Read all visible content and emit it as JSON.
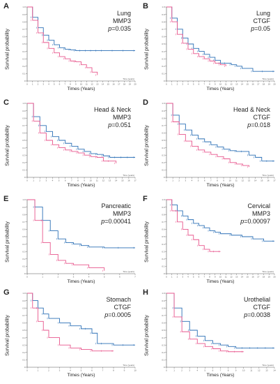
{
  "colors": {
    "mmp_high": "#2a6fb5",
    "mmp_low": "#e8558c",
    "axis": "#555555"
  },
  "common": {
    "ylabel": "Survival probability",
    "xlabel": "Times (Years)",
    "p_prefix": "p",
    "time_tag": "Time (years)"
  },
  "chart_data": [
    {
      "type": "line",
      "panel": "A",
      "cancer": "Lung",
      "gene": "MMP3",
      "p_value": "=0.035",
      "xlim": [
        0,
        20
      ],
      "ylim": [
        0,
        1
      ],
      "x_ticks": [
        "0",
        "1",
        "2",
        "3",
        "4",
        "5",
        "6",
        "7",
        "8",
        "9",
        "10",
        "11",
        "12",
        "13",
        "14",
        "15",
        "16",
        "17",
        "18",
        "19",
        "20"
      ],
      "y_ticks": [
        "0",
        "0.1",
        "0.2",
        "0.3",
        "0.4",
        "0.5",
        "0.6",
        "0.7",
        "0.8",
        "0.9",
        "1.0"
      ],
      "series": [
        {
          "x": [
            0,
            1,
            2,
            3,
            4,
            5,
            6,
            7,
            8,
            9,
            10,
            11,
            12,
            13,
            14,
            16,
            18,
            20
          ],
          "y": [
            1,
            0.86,
            0.72,
            0.62,
            0.55,
            0.49,
            0.45,
            0.43,
            0.42,
            0.41,
            0.41,
            0.41,
            0.41,
            0.41,
            0.41,
            0.41,
            0.41,
            0.41
          ]
        },
        {
          "x": [
            0,
            1,
            2,
            3,
            4,
            5,
            6,
            7,
            8,
            9,
            10,
            11,
            12,
            13
          ],
          "y": [
            1,
            0.82,
            0.65,
            0.52,
            0.44,
            0.38,
            0.33,
            0.3,
            0.27,
            0.26,
            0.22,
            0.18,
            0.12,
            0.08
          ]
        }
      ]
    },
    {
      "type": "line",
      "panel": "B",
      "cancer": "Lung",
      "gene": "CTGF",
      "p_value": "=0.05",
      "xlim": [
        0,
        20
      ],
      "ylim": [
        0,
        1
      ],
      "x_ticks": [
        "0",
        "1",
        "2",
        "3",
        "4",
        "5",
        "6",
        "7",
        "8",
        "9",
        "10",
        "11",
        "12",
        "13",
        "14",
        "15",
        "16",
        "17",
        "18",
        "19",
        "20"
      ],
      "y_ticks": [
        "0",
        "0.1",
        "0.2",
        "0.3",
        "0.4",
        "0.5",
        "0.6",
        "0.7",
        "0.8",
        "0.9",
        "1.0"
      ],
      "series": [
        {
          "x": [
            0,
            1,
            2,
            3,
            4,
            5,
            6,
            7,
            8,
            9,
            10,
            11,
            12,
            13,
            14,
            16,
            18,
            20
          ],
          "y": [
            1,
            0.85,
            0.7,
            0.58,
            0.5,
            0.44,
            0.4,
            0.36,
            0.32,
            0.28,
            0.24,
            0.24,
            0.22,
            0.2,
            0.17,
            0.13,
            0.13,
            0.13
          ]
        },
        {
          "x": [
            0,
            1,
            2,
            3,
            4,
            5,
            6,
            7,
            8,
            9,
            10,
            11
          ],
          "y": [
            1,
            0.8,
            0.63,
            0.51,
            0.43,
            0.37,
            0.33,
            0.3,
            0.27,
            0.24,
            0.22,
            0.2
          ]
        }
      ]
    },
    {
      "type": "line",
      "panel": "C",
      "cancer": "Head & Neck",
      "gene": "MMP3",
      "p_value": "=0.051",
      "xlim": [
        0,
        17
      ],
      "ylim": [
        0,
        1
      ],
      "x_ticks": [
        "0",
        "1",
        "2",
        "3",
        "4",
        "5",
        "6",
        "7",
        "8",
        "9",
        "10",
        "11",
        "12",
        "13",
        "14",
        "15",
        "16",
        "17"
      ],
      "y_ticks": [
        "0",
        "0.1",
        "0.2",
        "0.3",
        "0.4",
        "0.5",
        "0.6",
        "0.7",
        "0.8",
        "0.9",
        "1.0"
      ],
      "series": [
        {
          "x": [
            0,
            1,
            2,
            3,
            4,
            5,
            6,
            7,
            8,
            9,
            10,
            11,
            12,
            13,
            14,
            15,
            16,
            17
          ],
          "y": [
            1,
            0.82,
            0.7,
            0.62,
            0.55,
            0.5,
            0.46,
            0.42,
            0.38,
            0.35,
            0.32,
            0.31,
            0.29,
            0.27,
            0.27,
            0.27,
            0.27,
            0.27
          ]
        },
        {
          "x": [
            0,
            1,
            2,
            3,
            4,
            5,
            6,
            7,
            8,
            9,
            10,
            11,
            12,
            13,
            14
          ],
          "y": [
            1,
            0.76,
            0.6,
            0.5,
            0.44,
            0.4,
            0.37,
            0.35,
            0.33,
            0.3,
            0.28,
            0.27,
            0.22,
            0.22,
            0.19
          ]
        }
      ]
    },
    {
      "type": "line",
      "panel": "D",
      "cancer": "Head & Neck",
      "gene": "CTGF",
      "p_value": "=0.018",
      "xlim": [
        0,
        17
      ],
      "ylim": [
        0,
        1
      ],
      "x_ticks": [
        "0",
        "1",
        "2",
        "3",
        "4",
        "5",
        "6",
        "7",
        "8",
        "9",
        "10",
        "11",
        "12",
        "13",
        "14",
        "15",
        "16",
        "17"
      ],
      "y_ticks": [
        "0",
        "0.1",
        "0.2",
        "0.3",
        "0.4",
        "0.5",
        "0.6",
        "0.7",
        "0.8",
        "0.9",
        "1.0"
      ],
      "series": [
        {
          "x": [
            0,
            1,
            2,
            3,
            4,
            5,
            6,
            7,
            8,
            9,
            10,
            11,
            12,
            13,
            14,
            15,
            16,
            17
          ],
          "y": [
            1,
            0.84,
            0.72,
            0.64,
            0.57,
            0.52,
            0.48,
            0.44,
            0.41,
            0.38,
            0.36,
            0.35,
            0.35,
            0.3,
            0.27,
            0.22,
            0.22,
            0.22
          ]
        },
        {
          "x": [
            0,
            1,
            2,
            3,
            4,
            5,
            6,
            7,
            8,
            9,
            10,
            11,
            12,
            13
          ],
          "y": [
            1,
            0.75,
            0.58,
            0.49,
            0.42,
            0.37,
            0.34,
            0.31,
            0.28,
            0.25,
            0.2,
            0.18,
            0.16,
            0.14
          ]
        }
      ]
    },
    {
      "type": "line",
      "panel": "E",
      "cancer": "Pancreatic",
      "gene": "MMP3",
      "p_value": "=0.00041",
      "xlim": [
        0,
        7
      ],
      "ylim": [
        0,
        1
      ],
      "x_ticks": [
        "0",
        "1",
        "2",
        "3",
        "4",
        "5",
        "6",
        "7"
      ],
      "y_ticks": [
        "0",
        "0.1",
        "0.2",
        "0.3",
        "0.4",
        "0.5",
        "0.6",
        "0.7",
        "0.8",
        "0.9",
        "1.0"
      ],
      "series": [
        {
          "x": [
            0,
            0.5,
            1,
            1.5,
            2,
            2.5,
            3,
            3.5,
            4,
            5,
            6,
            7
          ],
          "y": [
            1,
            0.9,
            0.72,
            0.58,
            0.47,
            0.42,
            0.4,
            0.38,
            0.36,
            0.35,
            0.35,
            0.35
          ]
        },
        {
          "x": [
            0,
            0.5,
            1,
            1.5,
            2,
            2.5,
            3,
            4,
            5
          ],
          "y": [
            1,
            0.72,
            0.42,
            0.26,
            0.18,
            0.14,
            0.12,
            0.08,
            0.04
          ]
        }
      ]
    },
    {
      "type": "line",
      "panel": "F",
      "cancer": "Cervical",
      "gene": "MMP3",
      "p_value": "=0.00097",
      "xlim": [
        0,
        20
      ],
      "ylim": [
        0,
        1
      ],
      "x_ticks": [
        "0",
        "1",
        "2",
        "3",
        "4",
        "5",
        "6",
        "7",
        "8",
        "9",
        "10",
        "11",
        "12",
        "13",
        "14",
        "15",
        "16",
        "17",
        "18",
        "19",
        "20"
      ],
      "y_ticks": [
        "0",
        "0.1",
        "0.2",
        "0.3",
        "0.4",
        "0.5",
        "0.6",
        "0.7",
        "0.8",
        "0.9",
        "1.0"
      ],
      "series": [
        {
          "x": [
            0,
            1,
            2,
            3,
            4,
            5,
            6,
            7,
            8,
            9,
            10,
            12,
            14,
            16,
            18,
            20
          ],
          "y": [
            1,
            0.93,
            0.85,
            0.78,
            0.73,
            0.68,
            0.65,
            0.62,
            0.58,
            0.56,
            0.54,
            0.52,
            0.5,
            0.47,
            0.44,
            0.44
          ]
        },
        {
          "x": [
            0,
            1,
            2,
            3,
            4,
            5,
            6,
            7,
            8,
            9,
            10
          ],
          "y": [
            1,
            0.85,
            0.7,
            0.6,
            0.52,
            0.46,
            0.38,
            0.33,
            0.3,
            0.3,
            0.3
          ]
        }
      ]
    },
    {
      "type": "line",
      "panel": "G",
      "cancer": "Stomach",
      "gene": "CTGF",
      "p_value": "=0.0005",
      "xlim": [
        0,
        10
      ],
      "ylim": [
        0,
        1
      ],
      "x_ticks": [
        "0",
        "1",
        "2",
        "3",
        "4",
        "5",
        "6",
        "7",
        "8",
        "9",
        "10"
      ],
      "y_ticks": [
        "0",
        "0.1",
        "0.2",
        "0.3",
        "0.4",
        "0.5",
        "0.6",
        "0.7",
        "0.8",
        "0.9",
        "1.0"
      ],
      "series": [
        {
          "x": [
            0,
            0.5,
            1,
            1.5,
            2,
            3,
            4,
            5,
            5.5,
            6,
            6.5,
            7,
            8,
            9,
            10
          ],
          "y": [
            1,
            0.9,
            0.8,
            0.72,
            0.66,
            0.6,
            0.56,
            0.52,
            0.52,
            0.46,
            0.32,
            0.32,
            0.3,
            0.3,
            0.3
          ]
        },
        {
          "x": [
            0,
            0.5,
            1,
            1.5,
            2,
            3,
            4,
            5,
            6,
            7,
            8
          ],
          "y": [
            1,
            0.8,
            0.62,
            0.5,
            0.4,
            0.3,
            0.26,
            0.24,
            0.22,
            0.22,
            0.22
          ]
        }
      ]
    },
    {
      "type": "line",
      "panel": "H",
      "cancer": "Urothelial",
      "gene": "CTGF",
      "p_value": "=0.0038",
      "xlim": [
        0,
        14
      ],
      "ylim": [
        0,
        1
      ],
      "x_ticks": [
        "0",
        "1",
        "2",
        "3",
        "4",
        "5",
        "6",
        "7",
        "8",
        "9",
        "10",
        "11",
        "12",
        "13",
        "14"
      ],
      "y_ticks": [
        "0",
        "0.1",
        "0.2",
        "0.3",
        "0.4",
        "0.5",
        "0.6",
        "0.7",
        "0.8",
        "0.9",
        "1.0"
      ],
      "series": [
        {
          "x": [
            0,
            1,
            2,
            3,
            4,
            5,
            6,
            7,
            8,
            9,
            10,
            11,
            12,
            13,
            14
          ],
          "y": [
            1,
            0.8,
            0.62,
            0.5,
            0.42,
            0.36,
            0.32,
            0.3,
            0.28,
            0.26,
            0.26,
            0.26,
            0.26,
            0.26,
            0.26
          ]
        },
        {
          "x": [
            0,
            1,
            2,
            3,
            4,
            5,
            6,
            7,
            8,
            9,
            10
          ],
          "y": [
            1,
            0.68,
            0.48,
            0.38,
            0.32,
            0.28,
            0.25,
            0.22,
            0.21,
            0.21,
            0.21
          ]
        }
      ]
    }
  ]
}
